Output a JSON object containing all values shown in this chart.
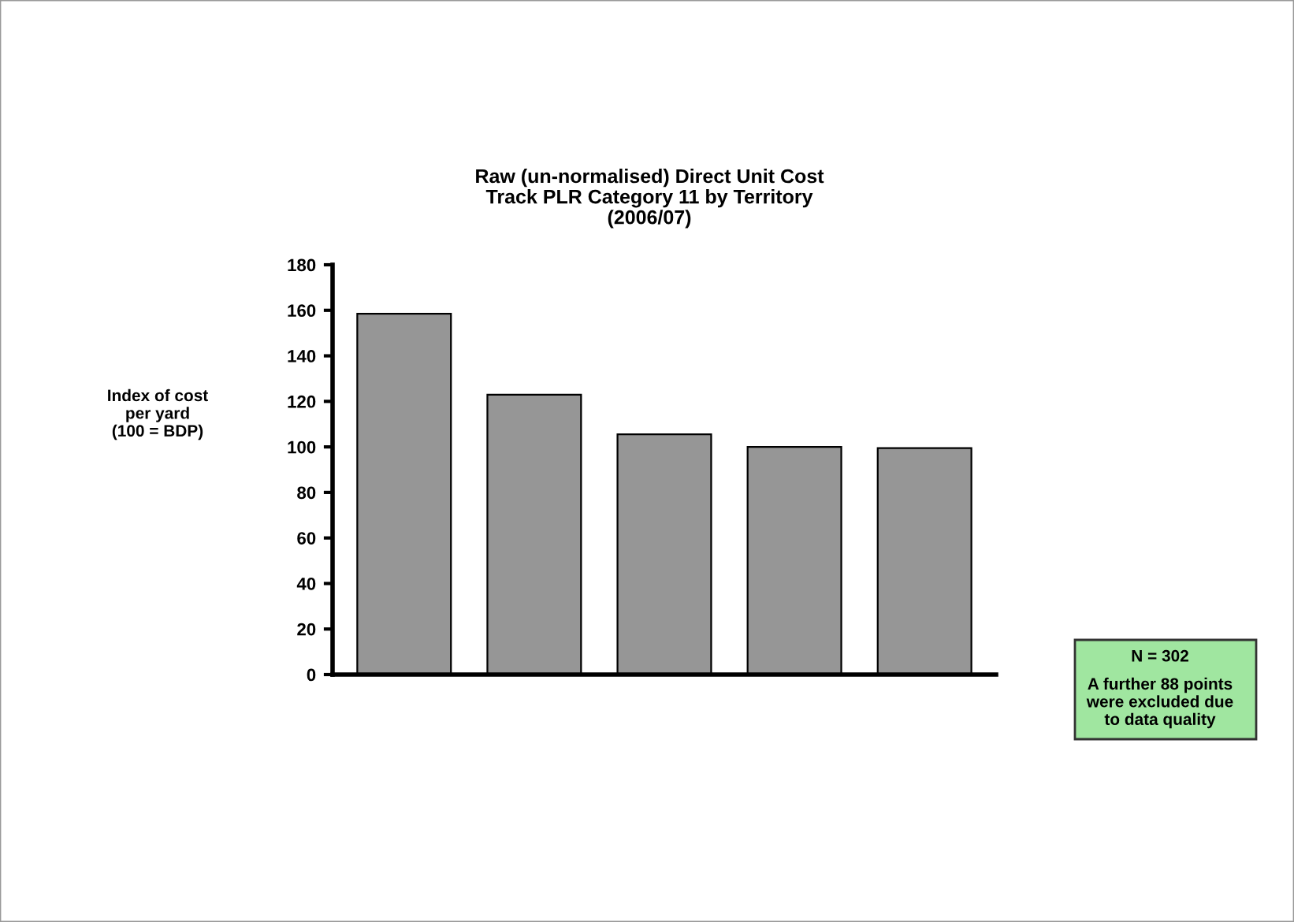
{
  "chart_data": {
    "type": "bar",
    "title": "Raw (un-normalised) Direct Unit Cost\nTrack PLR Category 11 by Territory\n(2006/07)",
    "ylabel": "Index of cost\nper yard\n(100 = BDP)",
    "categories": [
      null,
      null,
      null,
      null,
      null
    ],
    "values": [
      158.5,
      122.9,
      105.5,
      100,
      99.5
    ],
    "color": "#969696",
    "ylim": [
      0,
      180
    ],
    "yticks": [
      0,
      20,
      40,
      60,
      80,
      100,
      120,
      140,
      160,
      180
    ],
    "grid": false,
    "legend": false,
    "annotations": [
      "N = 302",
      "A further 88 points\nwere excluded due\nto data quality"
    ]
  }
}
